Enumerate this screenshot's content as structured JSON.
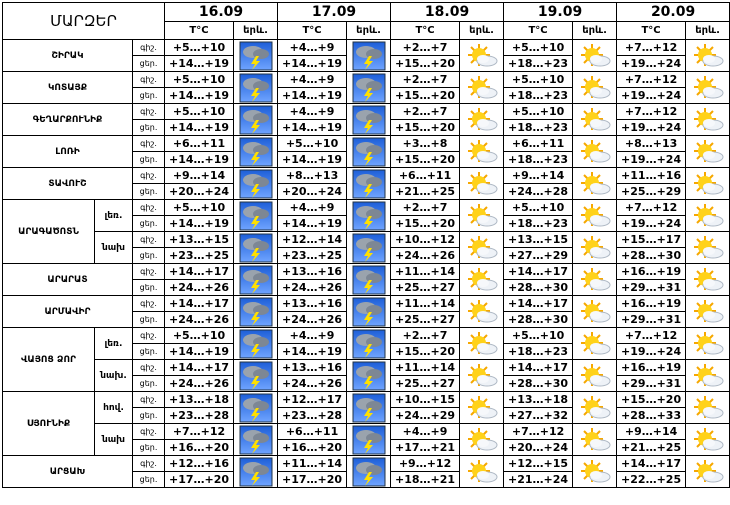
{
  "header": {
    "title": "ՄԱՐԶԵՐ",
    "days": [
      {
        "date": "16.09",
        "temp": "T°C",
        "icon": "երև."
      },
      {
        "date": "17.09",
        "temp": "T°C",
        "icon": "երև."
      },
      {
        "date": "18.09",
        "temp": "T°C",
        "icon": "երև."
      },
      {
        "date": "19.09",
        "temp": "T°C",
        "icon": "երև."
      },
      {
        "date": "20.09",
        "temp": "T°C",
        "icon": "երև."
      }
    ]
  },
  "regions": [
    {
      "name": "ՇԻՐԱԿ",
      "periods": [
        {
          "label": "գիշ.",
          "values": [
            "+5…+10",
            "+4…+9",
            "+2…+7",
            "+5…+10",
            "+7…+12"
          ]
        },
        {
          "label": "ցեր.",
          "values": [
            "+14…+19",
            "+14…+19",
            "+15…+20",
            "+18…+23",
            "+19…+24"
          ]
        }
      ]
    },
    {
      "name": "ԿՈՏԱՅՔ",
      "periods": [
        {
          "label": "գիշ.",
          "values": [
            "+5…+10",
            "+4…+9",
            "+2…+7",
            "+5…+10",
            "+7…+12"
          ]
        },
        {
          "label": "ցեր.",
          "values": [
            "+14…+19",
            "+14…+19",
            "+15…+20",
            "+18…+23",
            "+19…+24"
          ]
        }
      ]
    },
    {
      "name": "ԳԵՂԱՐՔՈՒՆԻՔ",
      "periods": [
        {
          "label": "գիշ.",
          "values": [
            "+5…+10",
            "+4…+9",
            "+2…+7",
            "+5…+10",
            "+7…+12"
          ]
        },
        {
          "label": "ցեր.",
          "values": [
            "+14…+19",
            "+14…+19",
            "+15…+20",
            "+18…+23",
            "+19…+24"
          ]
        }
      ]
    },
    {
      "name": "ԼՈՌԻ",
      "periods": [
        {
          "label": "գիշ.",
          "values": [
            "+6…+11",
            "+5…+10",
            "+3…+8",
            "+6…+11",
            "+8…+13"
          ]
        },
        {
          "label": "ցեր.",
          "values": [
            "+14…+19",
            "+14…+19",
            "+15…+20",
            "+18…+23",
            "+19…+24"
          ]
        }
      ]
    },
    {
      "name": "ՏԱՎՈՒՇ",
      "periods": [
        {
          "label": "գիշ.",
          "values": [
            "+9…+14",
            "+8…+13",
            "+6…+11",
            "+9…+14",
            "+11…+16"
          ]
        },
        {
          "label": "ցեր.",
          "values": [
            "+20…+24",
            "+20…+24",
            "+21…+25",
            "+24…+28",
            "+25…+29"
          ]
        }
      ]
    },
    {
      "name": "ԱՐԱԳԱԾՈՏՆ",
      "zones": [
        {
          "name": "լեռ.",
          "periods": [
            {
              "label": "գիշ.",
              "values": [
                "+5…+10",
                "+4…+9",
                "+2…+7",
                "+5…+10",
                "+7…+12"
              ]
            },
            {
              "label": "ցեր.",
              "values": [
                "+14…+19",
                "+14…+19",
                "+15…+20",
                "+18…+23",
                "+19…+24"
              ]
            }
          ]
        },
        {
          "name": "նախ",
          "periods": [
            {
              "label": "գիշ.",
              "values": [
                "+13…+15",
                "+12…+14",
                "+10…+12",
                "+13…+15",
                "+15…+17"
              ]
            },
            {
              "label": "ցեր.",
              "values": [
                "+23…+25",
                "+23…+25",
                "+24…+26",
                "+27…+29",
                "+28…+30"
              ]
            }
          ]
        }
      ]
    },
    {
      "name": "ԱՐԱՐԱՏ",
      "periods": [
        {
          "label": "գիշ.",
          "values": [
            "+14…+17",
            "+13…+16",
            "+11…+14",
            "+14…+17",
            "+16…+19"
          ]
        },
        {
          "label": "ցեր.",
          "values": [
            "+24…+26",
            "+24…+26",
            "+25…+27",
            "+28…+30",
            "+29…+31"
          ]
        }
      ]
    },
    {
      "name": "ԱՐՄԱՎԻՐ",
      "periods": [
        {
          "label": "գիշ.",
          "values": [
            "+14…+17",
            "+13…+16",
            "+11…+14",
            "+14…+17",
            "+16…+19"
          ]
        },
        {
          "label": "ցեր.",
          "values": [
            "+24…+26",
            "+24…+26",
            "+25…+27",
            "+28…+30",
            "+29…+31"
          ]
        }
      ]
    },
    {
      "name": "ՎԱՅՈՑ ՁՈՐ",
      "zones": [
        {
          "name": "լեռ.",
          "periods": [
            {
              "label": "գիշ.",
              "values": [
                "+5…+10",
                "+4…+9",
                "+2…+7",
                "+5…+10",
                "+7…+12"
              ]
            },
            {
              "label": "ցեր.",
              "values": [
                "+14…+19",
                "+14…+19",
                "+15…+20",
                "+18…+23",
                "+19…+24"
              ]
            }
          ]
        },
        {
          "name": "նախ.",
          "periods": [
            {
              "label": "գիշ.",
              "values": [
                "+14…+17",
                "+13…+16",
                "+11…+14",
                "+14…+17",
                "+16…+19"
              ]
            },
            {
              "label": "ցեր.",
              "values": [
                "+24…+26",
                "+24…+26",
                "+25…+27",
                "+28…+30",
                "+29…+31"
              ]
            }
          ]
        }
      ]
    },
    {
      "name": "ՍՅՈՒՆԻՔ",
      "zones": [
        {
          "name": "հով.",
          "periods": [
            {
              "label": "գիշ.",
              "values": [
                "+13…+18",
                "+12…+17",
                "+10…+15",
                "+13…+18",
                "+15…+20"
              ]
            },
            {
              "label": "ցեր.",
              "values": [
                "+23…+28",
                "+23…+28",
                "+24…+29",
                "+27…+32",
                "+28…+33"
              ]
            }
          ]
        },
        {
          "name": "նախ",
          "periods": [
            {
              "label": "գիշ.",
              "values": [
                "+7…+12",
                "+6…+11",
                "+4…+9",
                "+7…+12",
                "+9…+14"
              ]
            },
            {
              "label": "ցեր.",
              "values": [
                "+16…+20",
                "+16…+20",
                "+17…+21",
                "+20…+24",
                "+21…+25"
              ]
            }
          ]
        }
      ]
    },
    {
      "name": "ԱՐՑԱԽ",
      "periods": [
        {
          "label": "գիշ.",
          "values": [
            "+12…+16",
            "+11…+14",
            "+9…+12",
            "+12…+15",
            "+14…+17"
          ]
        },
        {
          "label": "ցեր.",
          "values": [
            "+17…+20",
            "+17…+20",
            "+18…+21",
            "+21…+24",
            "+22…+25"
          ]
        }
      ]
    }
  ]
}
